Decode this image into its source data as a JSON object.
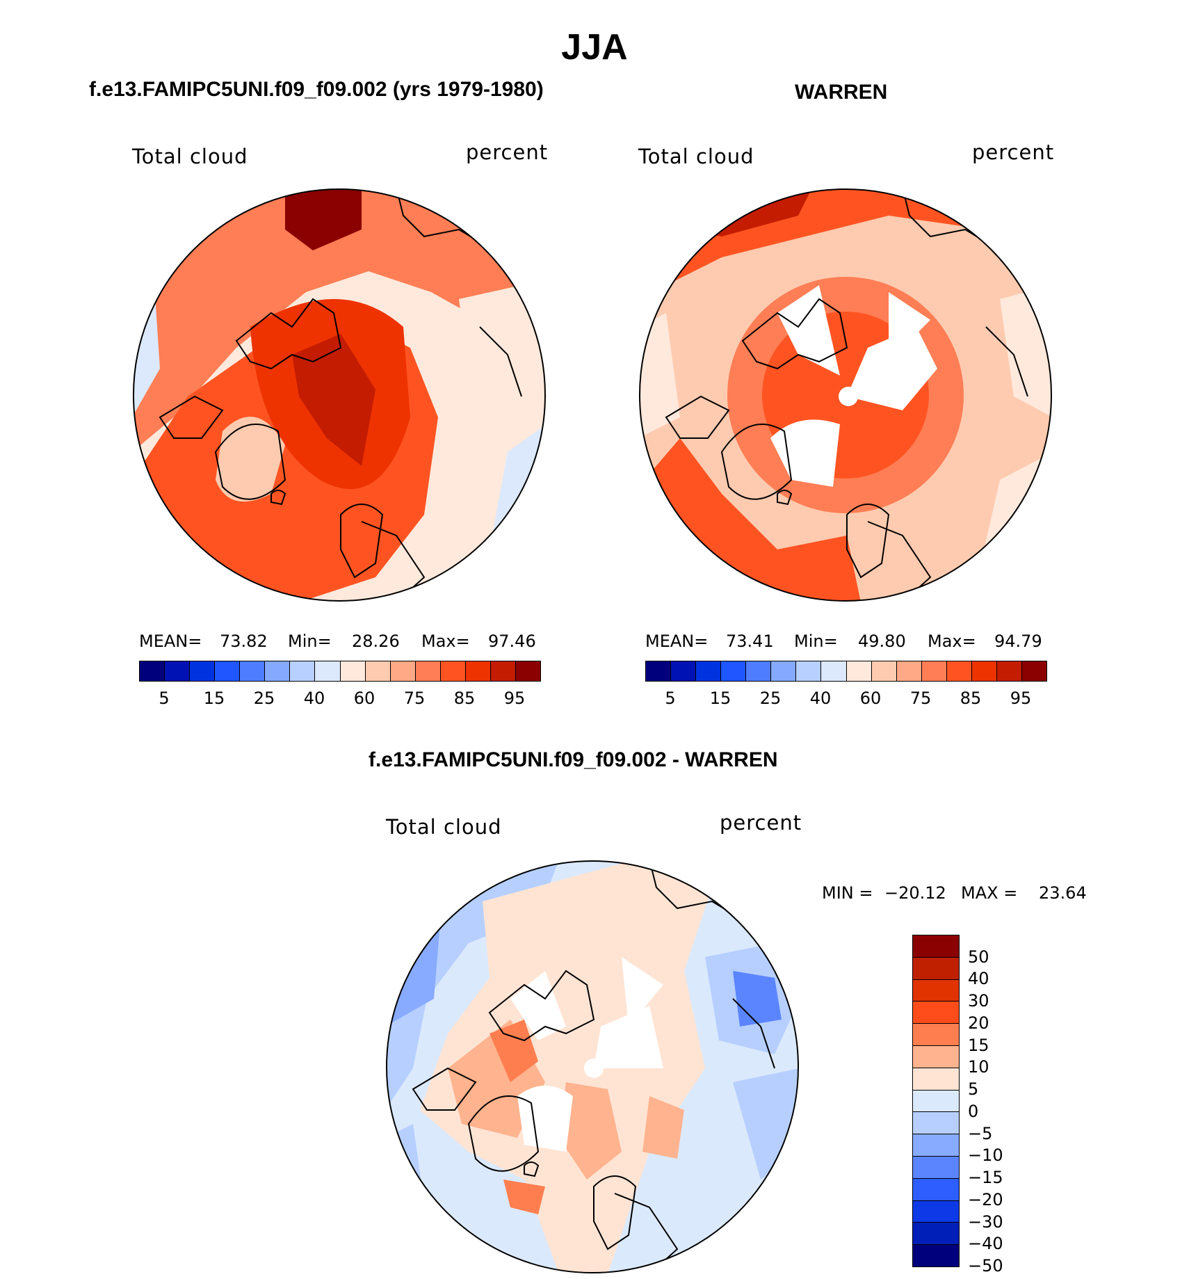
{
  "title": "JJA",
  "panels": {
    "left": {
      "subtitle": "f.e13.FAMIPC5UNI.f09_f09.002 (yrs 1979-1980)",
      "variable": "Total cloud",
      "units": "percent",
      "stats": {
        "mean_label": "MEAN=",
        "mean": "73.82",
        "min_label": "Min=",
        "min": "28.26",
        "max_label": "Max=",
        "max": "97.46"
      }
    },
    "right": {
      "subtitle": "WARREN",
      "variable": "Total cloud",
      "units": "percent",
      "stats": {
        "mean_label": "MEAN=",
        "mean": "73.41",
        "min_label": "Min=",
        "min": "49.80",
        "max_label": "Max=",
        "max": "94.79"
      }
    },
    "diff": {
      "subtitle": "f.e13.FAMIPC5UNI.f09_f09.002 - WARREN",
      "variable": "Total cloud",
      "units": "percent",
      "stats": {
        "min_label": "MIN =",
        "min": "−20.12",
        "max_label": "MAX =",
        "max": "23.64"
      }
    }
  },
  "abs_colorbar": {
    "colors": [
      "#00007d",
      "#0012b3",
      "#0033e0",
      "#1f56ff",
      "#4f7dff",
      "#85a9ff",
      "#b8d0ff",
      "#dce9fc",
      "#ffe9dc",
      "#ffcbb0",
      "#ffa986",
      "#ff7e55",
      "#ff5422",
      "#ee3300",
      "#c41c00",
      "#8b0000"
    ],
    "ticks": [
      "5",
      "15",
      "25",
      "40",
      "60",
      "75",
      "85",
      "95"
    ]
  },
  "diff_colorbar": {
    "colors": [
      "#8b0000",
      "#c02000",
      "#e03300",
      "#ff4c1a",
      "#ff7e4f",
      "#ffb38e",
      "#ffe4d4",
      "#dbe9fc",
      "#b6cfff",
      "#88abff",
      "#5b85ff",
      "#2e5eff",
      "#0d39e6",
      "#001fb8",
      "#00007d"
    ],
    "ticks": [
      "50",
      "40",
      "30",
      "20",
      "15",
      "10",
      "5",
      "0",
      "−5",
      "−10",
      "−15",
      "−20",
      "−30",
      "−40",
      "−50"
    ]
  },
  "chart_data": [
    {
      "type": "heatmap",
      "title": "f.e13.FAMIPC5UNI.f09_f09.002 (yrs 1979-1980)",
      "variable": "Total cloud",
      "units": "percent",
      "projection": "north polar stereographic",
      "mean": 73.82,
      "min": 28.26,
      "max": 97.46,
      "levels": [
        5,
        10,
        15,
        20,
        25,
        30,
        40,
        50,
        60,
        70,
        75,
        80,
        85,
        90,
        95
      ]
    },
    {
      "type": "heatmap",
      "title": "WARREN",
      "variable": "Total cloud",
      "units": "percent",
      "projection": "north polar stereographic",
      "mean": 73.41,
      "min": 49.8,
      "max": 94.79,
      "levels": [
        5,
        10,
        15,
        20,
        25,
        30,
        40,
        50,
        60,
        70,
        75,
        80,
        85,
        90,
        95
      ]
    },
    {
      "type": "heatmap",
      "title": "f.e13.FAMIPC5UNI.f09_f09.002 - WARREN",
      "variable": "Total cloud",
      "units": "percent",
      "projection": "north polar stereographic",
      "min": -20.12,
      "max": 23.64,
      "levels": [
        -50,
        -40,
        -30,
        -20,
        -15,
        -10,
        -5,
        0,
        5,
        10,
        15,
        20,
        30,
        40,
        50
      ]
    }
  ]
}
